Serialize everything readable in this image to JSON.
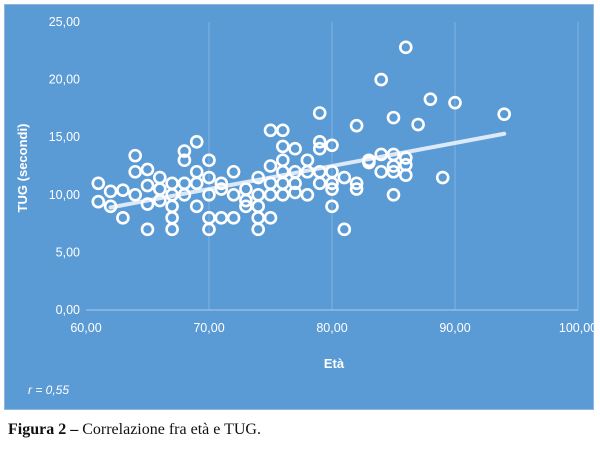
{
  "chart_data": {
    "type": "scatter",
    "title": "",
    "xlabel": "Età",
    "ylabel": "TUG (secondi)",
    "xlim": [
      60,
      100
    ],
    "ylim": [
      0,
      25
    ],
    "x_ticks": [
      60,
      70,
      80,
      90,
      100
    ],
    "y_ticks": [
      0,
      5,
      10,
      15,
      20,
      25
    ],
    "x_tick_labels": [
      "60,00",
      "70,00",
      "80,00",
      "90,00",
      "100,00"
    ],
    "y_tick_labels": [
      "0,00",
      "5,00",
      "10,00",
      "15,00",
      "20,00",
      "25,00"
    ],
    "grid": "vertical",
    "annotation": "r = 0,55",
    "trendline": {
      "x": [
        62,
        94
      ],
      "y": [
        8.9,
        15.3
      ]
    },
    "colors": {
      "plot_background": "#5b9bd5",
      "marker_stroke": "#ffffff",
      "trendline": "#dce9f7",
      "grid": "#7fb0de"
    },
    "points": [
      {
        "x": 61,
        "y": 11.0
      },
      {
        "x": 61,
        "y": 9.4
      },
      {
        "x": 62,
        "y": 9.0
      },
      {
        "x": 62,
        "y": 10.3
      },
      {
        "x": 63,
        "y": 8.0
      },
      {
        "x": 63,
        "y": 10.4
      },
      {
        "x": 64,
        "y": 13.4
      },
      {
        "x": 64,
        "y": 12.0
      },
      {
        "x": 64,
        "y": 10.0
      },
      {
        "x": 65,
        "y": 12.2
      },
      {
        "x": 65,
        "y": 10.8
      },
      {
        "x": 65,
        "y": 9.2
      },
      {
        "x": 65,
        "y": 7.0
      },
      {
        "x": 66,
        "y": 11.5
      },
      {
        "x": 66,
        "y": 10.5
      },
      {
        "x": 66,
        "y": 9.5
      },
      {
        "x": 67,
        "y": 11.0
      },
      {
        "x": 67,
        "y": 10.0
      },
      {
        "x": 67,
        "y": 9.0
      },
      {
        "x": 67,
        "y": 8.0
      },
      {
        "x": 67,
        "y": 7.0
      },
      {
        "x": 68,
        "y": 13.8
      },
      {
        "x": 68,
        "y": 13.0
      },
      {
        "x": 68,
        "y": 11.0
      },
      {
        "x": 68,
        "y": 10.0
      },
      {
        "x": 69,
        "y": 14.6
      },
      {
        "x": 69,
        "y": 12.0
      },
      {
        "x": 69,
        "y": 11.0
      },
      {
        "x": 69,
        "y": 9.0
      },
      {
        "x": 70,
        "y": 13.0
      },
      {
        "x": 70,
        "y": 11.5
      },
      {
        "x": 70,
        "y": 10.0
      },
      {
        "x": 70,
        "y": 8.0
      },
      {
        "x": 70,
        "y": 7.0
      },
      {
        "x": 71,
        "y": 11.0
      },
      {
        "x": 71,
        "y": 10.5
      },
      {
        "x": 71,
        "y": 8.0
      },
      {
        "x": 72,
        "y": 12.0
      },
      {
        "x": 72,
        "y": 10.0
      },
      {
        "x": 72,
        "y": 8.0
      },
      {
        "x": 73,
        "y": 10.5
      },
      {
        "x": 73,
        "y": 9.5
      },
      {
        "x": 73,
        "y": 9.0
      },
      {
        "x": 74,
        "y": 11.5
      },
      {
        "x": 74,
        "y": 10.0
      },
      {
        "x": 74,
        "y": 9.0
      },
      {
        "x": 74,
        "y": 8.0
      },
      {
        "x": 74,
        "y": 7.0
      },
      {
        "x": 75,
        "y": 15.6
      },
      {
        "x": 75,
        "y": 12.5
      },
      {
        "x": 75,
        "y": 11.0
      },
      {
        "x": 75,
        "y": 10.0
      },
      {
        "x": 75,
        "y": 8.0
      },
      {
        "x": 76,
        "y": 15.6
      },
      {
        "x": 76,
        "y": 14.2
      },
      {
        "x": 76,
        "y": 13.0
      },
      {
        "x": 76,
        "y": 12.0
      },
      {
        "x": 76,
        "y": 11.0
      },
      {
        "x": 76,
        "y": 10.0
      },
      {
        "x": 77,
        "y": 14.0
      },
      {
        "x": 77,
        "y": 12.0
      },
      {
        "x": 77,
        "y": 11.0
      },
      {
        "x": 77,
        "y": 10.2
      },
      {
        "x": 78,
        "y": 13.0
      },
      {
        "x": 78,
        "y": 12.0
      },
      {
        "x": 78,
        "y": 10.0
      },
      {
        "x": 79,
        "y": 17.1
      },
      {
        "x": 79,
        "y": 14.6
      },
      {
        "x": 79,
        "y": 14.0
      },
      {
        "x": 79,
        "y": 12.0
      },
      {
        "x": 79,
        "y": 11.0
      },
      {
        "x": 80,
        "y": 14.3
      },
      {
        "x": 80,
        "y": 12.0
      },
      {
        "x": 80,
        "y": 11.0
      },
      {
        "x": 80,
        "y": 10.5
      },
      {
        "x": 80,
        "y": 9.0
      },
      {
        "x": 81,
        "y": 11.5
      },
      {
        "x": 81,
        "y": 7.0
      },
      {
        "x": 82,
        "y": 16.0
      },
      {
        "x": 82,
        "y": 11.0
      },
      {
        "x": 82,
        "y": 10.5
      },
      {
        "x": 83,
        "y": 13.0
      },
      {
        "x": 83,
        "y": 12.8
      },
      {
        "x": 84,
        "y": 20.0
      },
      {
        "x": 84,
        "y": 13.5
      },
      {
        "x": 84,
        "y": 12.0
      },
      {
        "x": 85,
        "y": 16.7
      },
      {
        "x": 85,
        "y": 13.5
      },
      {
        "x": 85,
        "y": 12.5
      },
      {
        "x": 85,
        "y": 12.0
      },
      {
        "x": 85,
        "y": 10.0
      },
      {
        "x": 86,
        "y": 22.8
      },
      {
        "x": 86,
        "y": 13.2
      },
      {
        "x": 86,
        "y": 12.6
      },
      {
        "x": 86,
        "y": 11.7
      },
      {
        "x": 87,
        "y": 16.1
      },
      {
        "x": 88,
        "y": 18.3
      },
      {
        "x": 89,
        "y": 11.5
      },
      {
        "x": 90,
        "y": 18.0
      },
      {
        "x": 94,
        "y": 17.0
      }
    ]
  },
  "caption": {
    "label": "Figura 2 –",
    "text": " Correlazione fra età e TUG."
  }
}
